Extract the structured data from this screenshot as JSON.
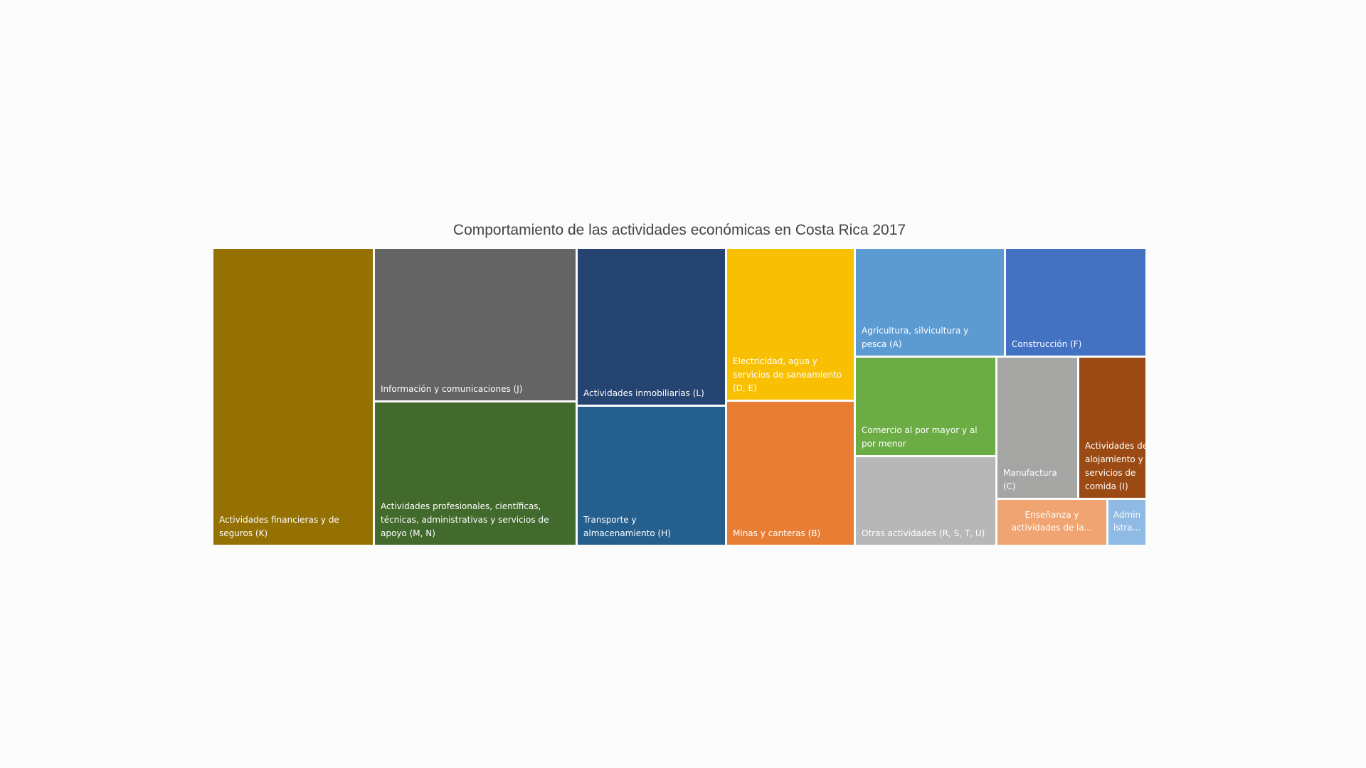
{
  "chart_data": {
    "type": "treemap",
    "title": "Comportamiento de las actividades económicas en Costa Rica 2017",
    "items": [
      {
        "label": "Actividades financieras y de seguros (K)",
        "color": "#957104"
      },
      {
        "label": "Información y comunicaciones (J)",
        "color": "#636463"
      },
      {
        "label": "Actividades profesionales, científicas, técnicas, administrativas y servicios de apoyo (M, N)",
        "color": "#426a2d"
      },
      {
        "label": "Actividades inmobiliarias (L)",
        "color": "#254472"
      },
      {
        "label": "Transporte y almacenamiento (H)",
        "color": "#255f8e"
      },
      {
        "label": "Electricidad, agua y servicios de saneamiento (D, E)",
        "color": "#f9c003"
      },
      {
        "label": "Minas y canteras (B)",
        "color": "#e87e34"
      },
      {
        "label": "Agricultura, silvicultura y pesca (A)",
        "color": "#5c9ad2"
      },
      {
        "label": "Construcción (F)",
        "color": "#4472c3"
      },
      {
        "label": "Comercio al por mayor y al por menor",
        "color": "#6bac45"
      },
      {
        "label": "Otras actividades (R, S, T, U)",
        "color": "#b6b7b6"
      },
      {
        "label": "Manufactura (C)",
        "color": "#a5a5a4"
      },
      {
        "label": "Actividades de alojamiento y servicios de comida (I)",
        "color": "#9c4a13"
      },
      {
        "label": "Enseñanza y actividades de la...",
        "color": "#f0a471"
      },
      {
        "label": "Admin istra...",
        "color": "#8ebae3"
      }
    ]
  }
}
